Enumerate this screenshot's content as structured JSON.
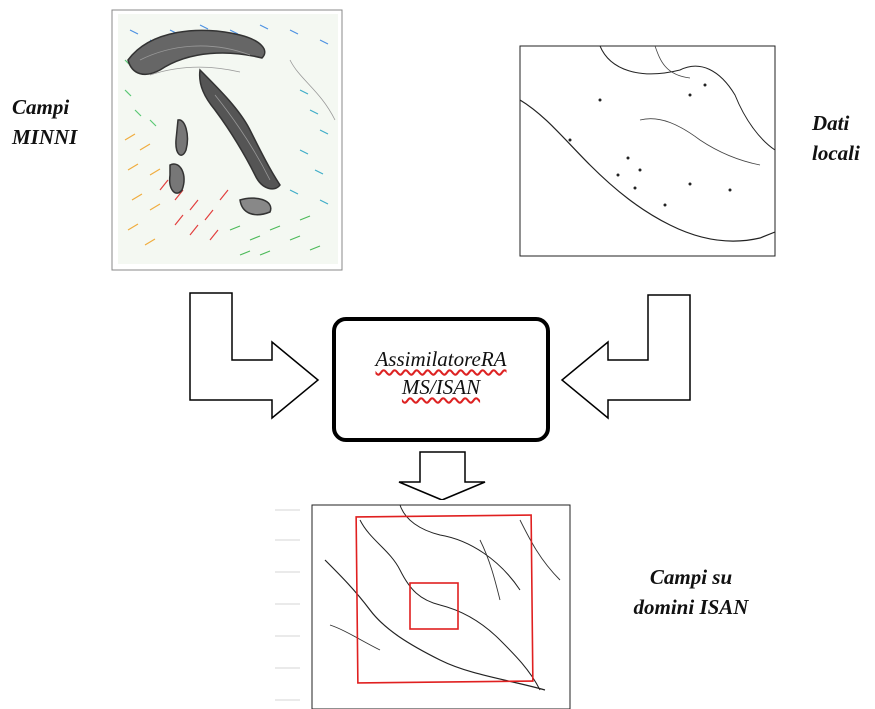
{
  "labels": {
    "campi_minni": [
      "Campi",
      "MINNI"
    ],
    "dati_locali": [
      "Dati",
      "locali"
    ],
    "campi_su_domini": [
      "Campi su",
      "domini ISAN"
    ]
  },
  "center_box": {
    "line1": "AssimilatoreRA",
    "line2": "MS/ISAN"
  },
  "colors": {
    "outline": "#000000",
    "domain_box": "#e02020",
    "spellcheck_underline": "#d22222"
  }
}
